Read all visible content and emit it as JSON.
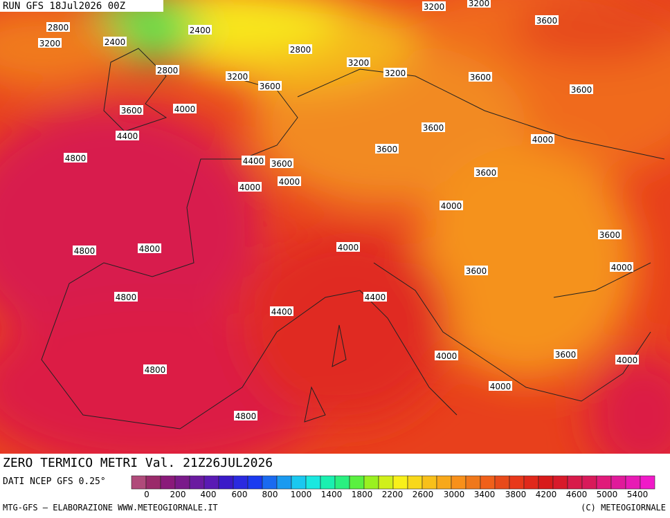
{
  "header": {
    "run": "RUN GFS 18Jul2026 00Z"
  },
  "map": {
    "contour_labels": [
      "3200",
      "3200",
      "3600",
      "2800",
      "3200",
      "2400",
      "2800",
      "2400",
      "2800",
      "3200",
      "3600",
      "3200",
      "3200",
      "3600",
      "3600",
      "3600",
      "4000",
      "4400",
      "3600",
      "4000",
      "3600",
      "4800",
      "4400",
      "3600",
      "3600",
      "4000",
      "4000",
      "4000",
      "3600",
      "4800",
      "4800",
      "4000",
      "3600",
      "4000",
      "4800",
      "4400",
      "4400",
      "4000",
      "3600",
      "4000",
      "4800",
      "4000",
      "4800"
    ]
  },
  "footer": {
    "title": "ZERO TERMICO METRI Val. 21Z26JUL2026",
    "source": "DATI NCEP GFS 0.25°",
    "credit": "MTG-GFS — ELABORAZIONE WWW.METEOGIORNALE.IT",
    "copyright": "(C) METEOGIORNALE",
    "scale_labels": [
      "0",
      "200",
      "400",
      "600",
      "800",
      "1000",
      "1400",
      "1800",
      "2200",
      "2600",
      "3000",
      "3400",
      "3800",
      "4200",
      "4600",
      "5000",
      "5400"
    ]
  }
}
